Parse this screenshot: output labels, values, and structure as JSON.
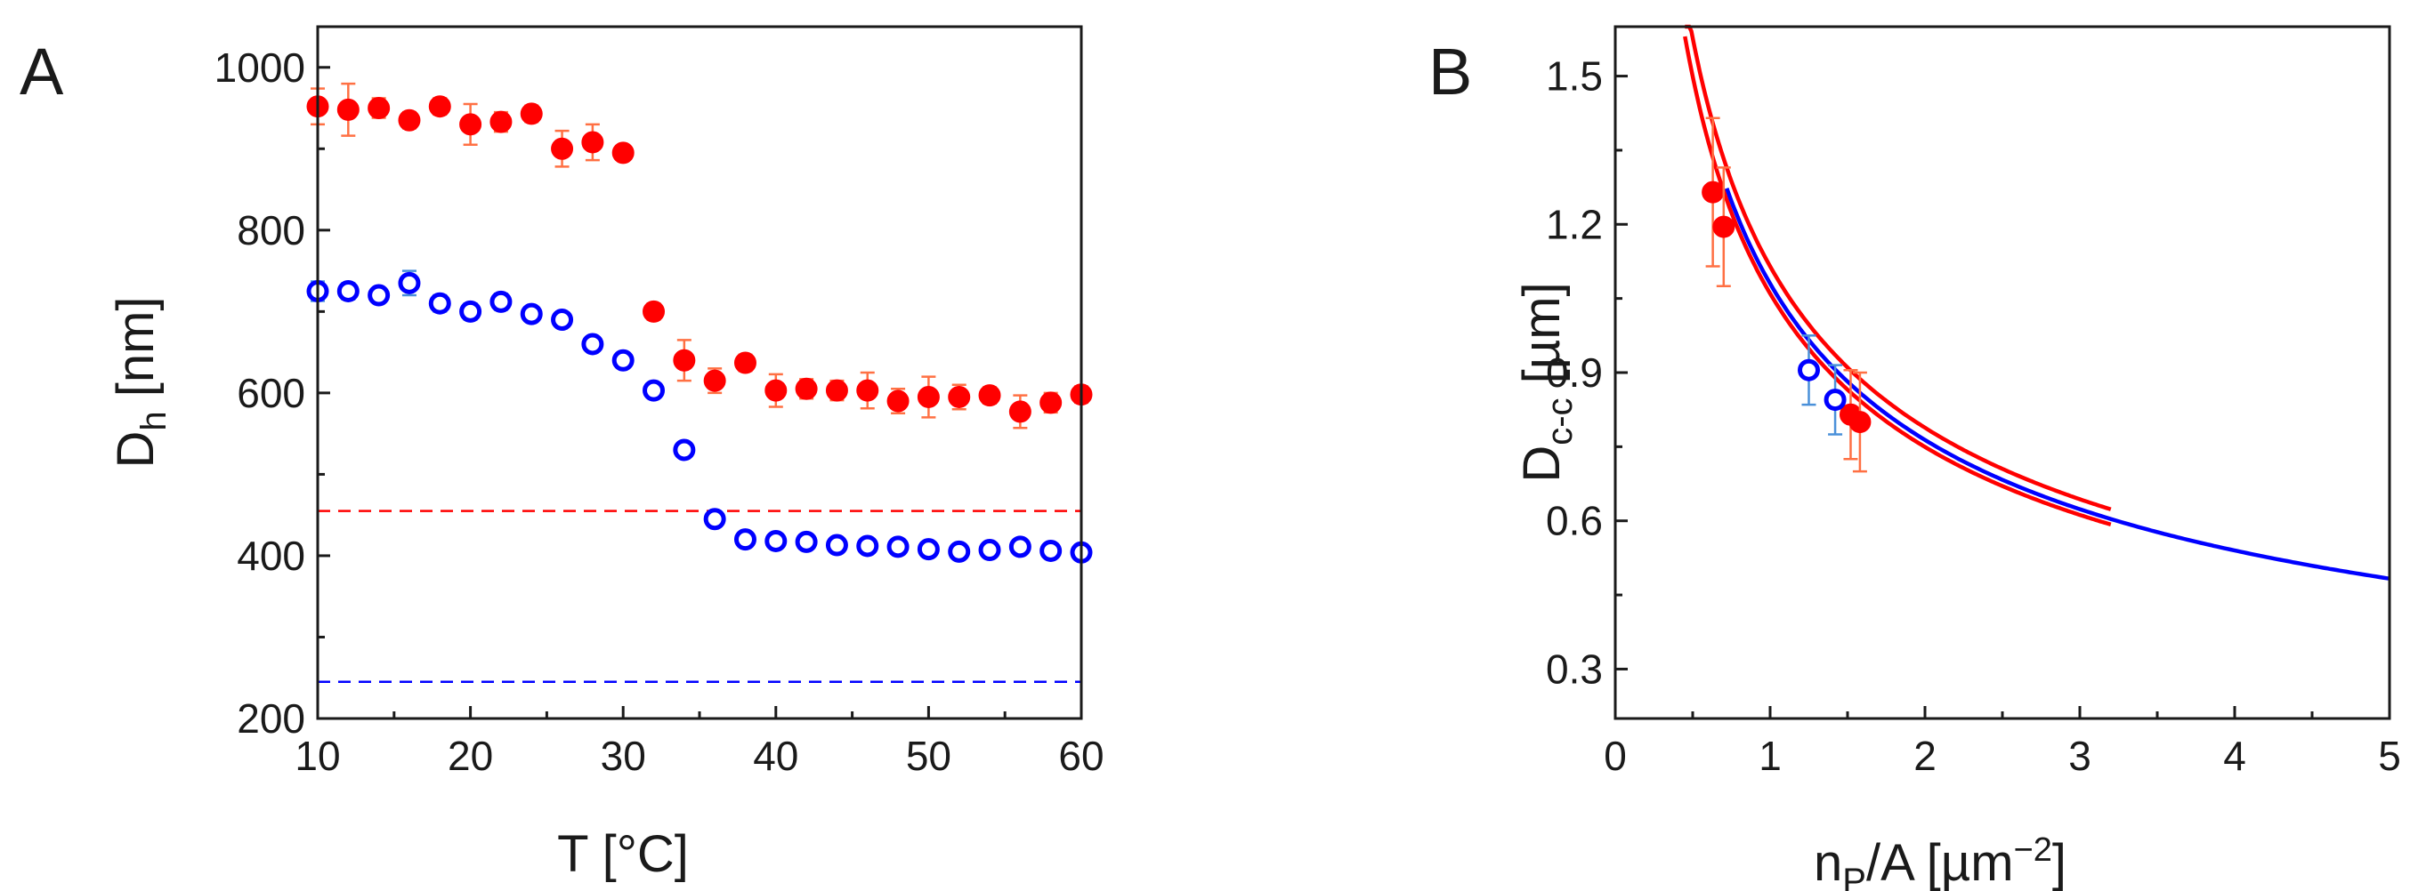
{
  "chart_data": [
    {
      "panel": "A",
      "type": "scatter",
      "xlabel": "T [°C]",
      "ylabel_main": "D",
      "ylabel_sub": "h",
      "ylabel_unit": "[nm]",
      "xlim": [
        10,
        60
      ],
      "ylim": [
        200,
        1050
      ],
      "xticks": [
        10,
        20,
        30,
        40,
        50,
        60
      ],
      "yticks": [
        200,
        400,
        600,
        800,
        1000
      ],
      "series": [
        {
          "name": "filled-red",
          "marker": "filled-circle",
          "color": "#ff0000",
          "errorbar_color": "#ff7043",
          "x": [
            10,
            12,
            14,
            16,
            18,
            20,
            22,
            24,
            26,
            28,
            30,
            32,
            34,
            36,
            38,
            40,
            42,
            44,
            46,
            48,
            50,
            52,
            54,
            56,
            58,
            60
          ],
          "y": [
            952,
            948,
            950,
            935,
            952,
            930,
            933,
            943,
            900,
            908,
            895,
            700,
            640,
            615,
            637,
            603,
            605,
            603,
            603,
            590,
            595,
            595,
            597,
            577,
            588,
            598
          ],
          "err": [
            22,
            32,
            12,
            10,
            10,
            25,
            12,
            10,
            22,
            22,
            8,
            10,
            25,
            15,
            10,
            20,
            12,
            12,
            22,
            15,
            25,
            15,
            10,
            20,
            12,
            10
          ]
        },
        {
          "name": "open-blue",
          "marker": "open-circle",
          "color": "#0000ff",
          "errorbar_color": "#4a90d9",
          "x": [
            10,
            12,
            14,
            16,
            18,
            20,
            22,
            24,
            26,
            28,
            30,
            32,
            34,
            36,
            38,
            40,
            42,
            44,
            46,
            48,
            50,
            52,
            54,
            56,
            58,
            60
          ],
          "y": [
            725,
            725,
            720,
            735,
            710,
            700,
            712,
            697,
            690,
            660,
            640,
            603,
            530,
            445,
            420,
            418,
            417,
            413,
            412,
            411,
            408,
            405,
            407,
            411,
            406,
            404
          ],
          "err": [
            12,
            10,
            8,
            15,
            10,
            10,
            10,
            8,
            8,
            8,
            8,
            8,
            8,
            8,
            8,
            8,
            8,
            8,
            8,
            8,
            8,
            8,
            8,
            8,
            8,
            8
          ]
        }
      ],
      "reference_lines": [
        {
          "y": 455,
          "color": "#ff0000",
          "style": "dashed"
        },
        {
          "y": 245,
          "color": "#0000ff",
          "style": "dashed"
        }
      ]
    },
    {
      "panel": "B",
      "type": "scatter",
      "xlabel_pre": "n",
      "xlabel_sub": "P",
      "xlabel_mid": "/A [µm",
      "xlabel_sup": "−2",
      "xlabel_post": "]",
      "ylabel_main": "D",
      "ylabel_sub": "c-c",
      "ylabel_unit": "[µm]",
      "xlim": [
        0,
        5
      ],
      "ylim": [
        0.2,
        1.6
      ],
      "xticks": [
        0,
        1,
        2,
        3,
        4,
        5
      ],
      "yticks": [
        0.3,
        0.6,
        0.9,
        1.2,
        1.5
      ],
      "ytick_labels": [
        "0.3",
        "0.6",
        "0.9",
        "1.2",
        "1.5"
      ],
      "series": [
        {
          "name": "filled-red",
          "marker": "filled-circle",
          "color": "#ff0000",
          "errorbar_color": "#ff7043",
          "x": [
            0.63,
            0.7,
            1.52,
            1.58
          ],
          "y": [
            1.265,
            1.195,
            0.815,
            0.8
          ],
          "err": [
            0.15,
            0.12,
            0.09,
            0.1
          ]
        },
        {
          "name": "open-blue",
          "marker": "open-circle",
          "color": "#0000ff",
          "errorbar_color": "#4a90d9",
          "x": [
            1.25,
            1.42
          ],
          "y": [
            0.905,
            0.845
          ],
          "err": [
            0.07,
            0.07
          ]
        }
      ],
      "curves": [
        {
          "name": "red-fit-upper",
          "color": "#ff0000",
          "coef": 1.115,
          "x_range": [
            0.45,
            3.2
          ]
        },
        {
          "name": "red-fit-lower",
          "color": "#ff0000",
          "coef": 1.06,
          "x_range": [
            0.45,
            3.2
          ]
        },
        {
          "name": "blue-fit",
          "color": "#0000ff",
          "coef": 1.08,
          "x_range": [
            0.72,
            5
          ]
        }
      ]
    }
  ]
}
